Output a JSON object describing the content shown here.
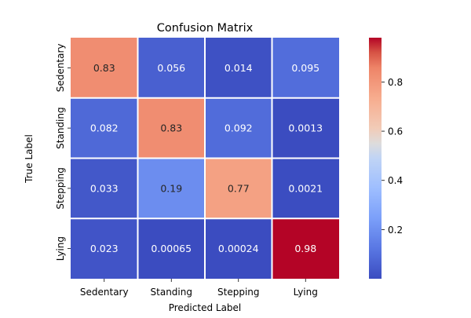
{
  "chart_data": {
    "type": "heatmap",
    "title": "Confusion Matrix",
    "xlabel": "Predicted Label",
    "ylabel": "True Label",
    "x_categories": [
      "Sedentary",
      "Standing",
      "Stepping",
      "Lying"
    ],
    "y_categories": [
      "Sedentary",
      "Standing",
      "Stepping",
      "Lying"
    ],
    "values": [
      [
        0.83,
        0.056,
        0.014,
        0.095
      ],
      [
        0.082,
        0.83,
        0.092,
        0.0013
      ],
      [
        0.033,
        0.19,
        0.77,
        0.0021
      ],
      [
        0.023,
        0.00065,
        0.00024,
        0.98
      ]
    ],
    "value_labels": [
      [
        "0.83",
        "0.056",
        "0.014",
        "0.095"
      ],
      [
        "0.082",
        "0.83",
        "0.092",
        "0.0013"
      ],
      [
        "0.033",
        "0.19",
        "0.77",
        "0.0021"
      ],
      [
        "0.023",
        "0.00065",
        "0.00024",
        "0.98"
      ]
    ],
    "colormap": "coolwarm",
    "color_range": [
      0.00024,
      0.98
    ],
    "colorbar_ticks": [
      {
        "value": 0.2,
        "label": "0.2"
      },
      {
        "value": 0.4,
        "label": "0.4"
      },
      {
        "value": 0.6,
        "label": "0.6"
      },
      {
        "value": 0.8,
        "label": "0.8"
      }
    ],
    "grid": true,
    "grid_color": "#ffffff"
  }
}
